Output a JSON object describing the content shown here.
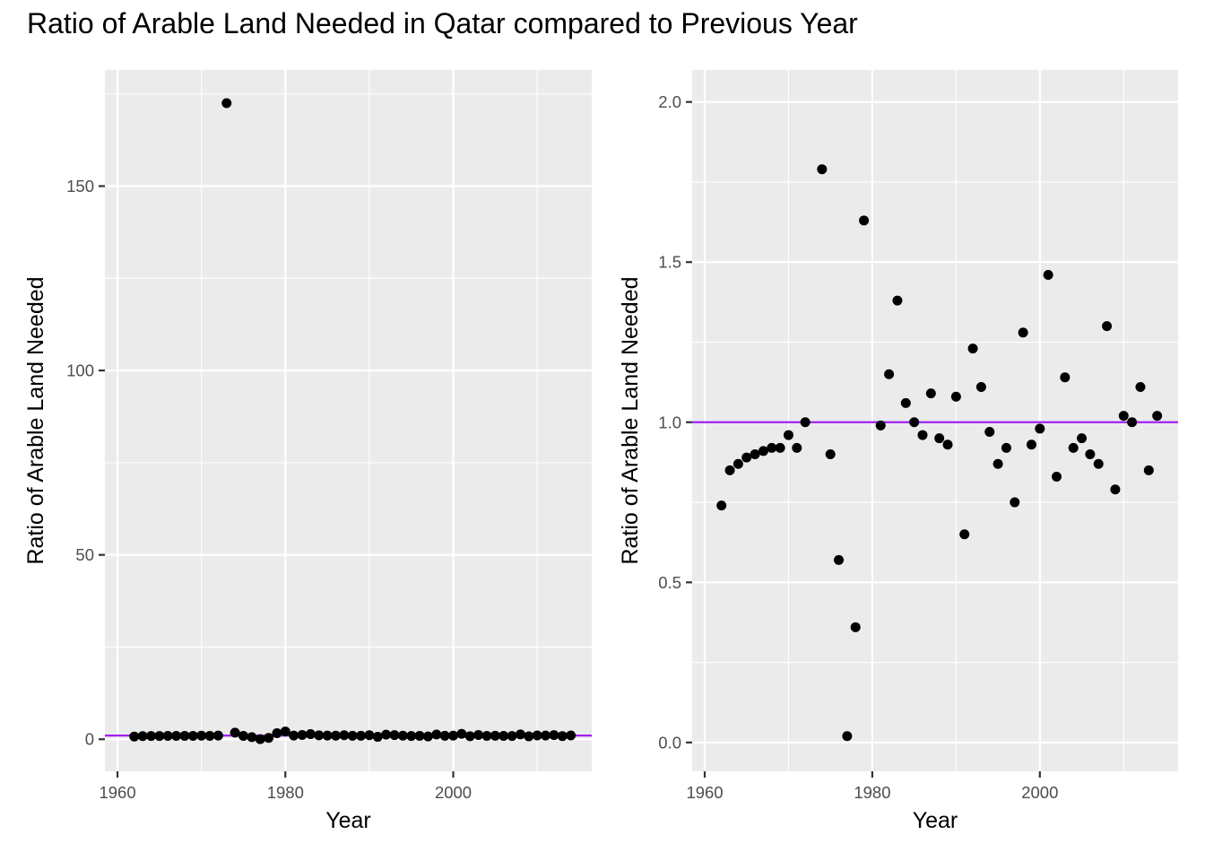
{
  "title": "Ratio of Arable Land Needed in Qatar compared to Previous Year",
  "colors": {
    "panel": "#ebebeb",
    "grid": "#ffffff",
    "reference_line": "#a020f0",
    "points": "#000000"
  },
  "chart_data": [
    {
      "type": "scatter",
      "panel": "left",
      "xlabel": "Year",
      "ylabel": "Ratio of Arable Land Needed",
      "xlim": [
        1958.5,
        2016.5
      ],
      "ylim": [
        -8.7,
        181.5
      ],
      "x_ticks": [
        1960,
        1980,
        2000
      ],
      "x_tick_labels": [
        "1960",
        "1980",
        "2000"
      ],
      "y_ticks": [
        0,
        50,
        100,
        150
      ],
      "y_tick_labels": [
        "0",
        "50",
        "100",
        "150"
      ],
      "reference_line_y": 1,
      "grid": true,
      "x": [
        1962,
        1963,
        1964,
        1965,
        1966,
        1967,
        1968,
        1969,
        1970,
        1971,
        1972,
        1973,
        1974,
        1975,
        1976,
        1977,
        1978,
        1979,
        1980,
        1981,
        1982,
        1983,
        1984,
        1985,
        1986,
        1987,
        1988,
        1989,
        1990,
        1991,
        1992,
        1993,
        1994,
        1995,
        1996,
        1997,
        1998,
        1999,
        2000,
        2001,
        2002,
        2003,
        2004,
        2005,
        2006,
        2007,
        2008,
        2009,
        2010,
        2011,
        2012,
        2013,
        2014
      ],
      "y": [
        0.74,
        0.85,
        0.87,
        0.89,
        0.9,
        0.91,
        0.92,
        0.92,
        0.96,
        0.92,
        1.0,
        172.5,
        1.79,
        0.9,
        0.57,
        0.02,
        0.36,
        1.63,
        2.1,
        0.99,
        1.15,
        1.38,
        1.06,
        1.0,
        0.96,
        1.09,
        0.95,
        0.93,
        1.08,
        0.65,
        1.23,
        1.11,
        0.97,
        0.87,
        0.92,
        0.75,
        1.28,
        0.93,
        0.98,
        1.46,
        0.83,
        1.14,
        0.92,
        0.95,
        0.9,
        0.87,
        1.3,
        0.79,
        1.02,
        1.0,
        1.11,
        0.85,
        1.02
      ]
    },
    {
      "type": "scatter",
      "panel": "right",
      "xlabel": "Year",
      "ylabel": "Ratio of Arable Land Needed",
      "xlim": [
        1958.5,
        2016.5
      ],
      "ylim": [
        -0.09,
        2.1
      ],
      "x_ticks": [
        1960,
        1980,
        2000
      ],
      "x_tick_labels": [
        "1960",
        "1980",
        "2000"
      ],
      "y_ticks": [
        0,
        0.5,
        1,
        1.5,
        2
      ],
      "y_tick_labels": [
        "0.0",
        "0.5",
        "1.0",
        "1.5",
        "2.0"
      ],
      "reference_line_y": 1,
      "grid": true,
      "x": [
        1962,
        1963,
        1964,
        1965,
        1966,
        1967,
        1968,
        1969,
        1970,
        1971,
        1972,
        1974,
        1975,
        1976,
        1977,
        1978,
        1979,
        1981,
        1982,
        1983,
        1984,
        1985,
        1986,
        1987,
        1988,
        1989,
        1990,
        1991,
        1992,
        1993,
        1994,
        1995,
        1996,
        1997,
        1998,
        1999,
        2000,
        2001,
        2002,
        2003,
        2004,
        2005,
        2006,
        2007,
        2008,
        2009,
        2010,
        2011,
        2012,
        2013,
        2014
      ],
      "y": [
        0.74,
        0.85,
        0.87,
        0.89,
        0.9,
        0.91,
        0.92,
        0.92,
        0.96,
        0.92,
        1.0,
        1.79,
        0.9,
        0.57,
        0.02,
        0.36,
        1.63,
        0.99,
        1.15,
        1.38,
        1.06,
        1.0,
        0.96,
        1.09,
        0.95,
        0.93,
        1.08,
        0.65,
        1.23,
        1.11,
        0.97,
        0.87,
        0.92,
        0.75,
        1.28,
        0.93,
        0.98,
        1.46,
        0.83,
        1.14,
        0.92,
        0.95,
        0.9,
        0.87,
        1.3,
        0.79,
        1.02,
        1.0,
        1.11,
        0.85,
        1.02
      ]
    }
  ]
}
